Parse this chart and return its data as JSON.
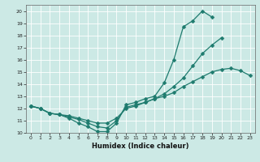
{
  "xlabel": "Humidex (Indice chaleur)",
  "bg_color": "#cce9e5",
  "grid_color": "#ffffff",
  "line_color": "#1e7b6e",
  "xlim": [
    -0.5,
    23.5
  ],
  "ylim": [
    10,
    20.5
  ],
  "yticks": [
    10,
    11,
    12,
    13,
    14,
    15,
    16,
    17,
    18,
    19,
    20
  ],
  "xticks": [
    0,
    1,
    2,
    3,
    4,
    5,
    6,
    7,
    8,
    9,
    10,
    11,
    12,
    13,
    14,
    15,
    16,
    17,
    18,
    19,
    20,
    21,
    22,
    23
  ],
  "line1_x": [
    0,
    1,
    2,
    3,
    4,
    5,
    6,
    7,
    8,
    9,
    10,
    11,
    12,
    13,
    14,
    15,
    16,
    17,
    18,
    19
  ],
  "line1_y": [
    12.2,
    12.0,
    11.6,
    11.5,
    11.2,
    10.8,
    10.5,
    10.1,
    10.1,
    10.8,
    12.3,
    12.5,
    12.8,
    13.0,
    14.1,
    16.0,
    18.7,
    19.2,
    20.0,
    19.5
  ],
  "line2_x": [
    0,
    1,
    2,
    3,
    4,
    5,
    6,
    7,
    8,
    9,
    10,
    11,
    12,
    13,
    14,
    15,
    16,
    17,
    18,
    19,
    20
  ],
  "line2_y": [
    12.2,
    12.0,
    11.6,
    11.5,
    11.3,
    11.1,
    10.8,
    10.5,
    10.4,
    11.0,
    12.1,
    12.3,
    12.5,
    12.8,
    13.2,
    13.8,
    14.5,
    15.5,
    16.5,
    17.2,
    17.8
  ],
  "line3_x": [
    0,
    1,
    2,
    3,
    4,
    5,
    6,
    7,
    8,
    9,
    10,
    11,
    12,
    13,
    14,
    15,
    16,
    17,
    18,
    19,
    20,
    21,
    22,
    23
  ],
  "line3_y": [
    12.2,
    12.0,
    11.6,
    11.5,
    11.4,
    11.2,
    11.0,
    10.8,
    10.8,
    11.2,
    12.0,
    12.2,
    12.5,
    12.8,
    13.0,
    13.3,
    13.8,
    14.2,
    14.6,
    15.0,
    15.2,
    15.3,
    15.1,
    14.7
  ]
}
